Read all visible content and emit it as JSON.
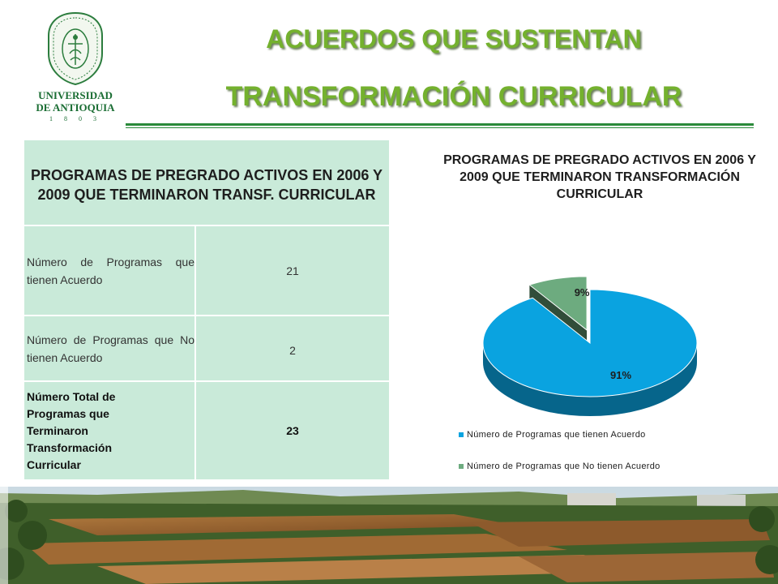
{
  "logo": {
    "name_line1": "UNIVERSIDAD",
    "name_line2": "DE ANTIOQUIA",
    "year": "1 8 0 3",
    "icon": "university-seal-icon"
  },
  "title": {
    "line1": "ACUERDOS QUE SUSTENTAN",
    "line2": "TRANSFORMACIÓN CURRICULAR"
  },
  "table": {
    "header": "PROGRAMAS DE PREGRADO ACTIVOS EN 2006 Y 2009 QUE TERMINARON TRANSF. CURRICULAR",
    "rows": [
      {
        "label": "Número de Programas que tienen Acuerdo",
        "value": "21"
      },
      {
        "label": "Número de Programas que No tienen Acuerdo",
        "value": "2"
      },
      {
        "label": "Número Total de Programas que Terminaron Transformación Curricular",
        "value": "23"
      }
    ]
  },
  "chart_data": {
    "type": "pie",
    "title": "PROGRAMAS DE PREGRADO ACTIVOS EN 2006 Y 2009 QUE TERMINARON TRANSFORMACIÓN CURRICULAR",
    "categories": [
      "Número de Programas que tienen Acuerdo",
      "Número de Programas que No tienen Acuerdo"
    ],
    "values": [
      91,
      9
    ],
    "data_labels": [
      "91%",
      "9%"
    ],
    "colors": [
      "#0aa3e0",
      "#6dab7f"
    ],
    "legend_position": "bottom",
    "three_d": true
  },
  "photo": {
    "icon": "campus-photo"
  }
}
